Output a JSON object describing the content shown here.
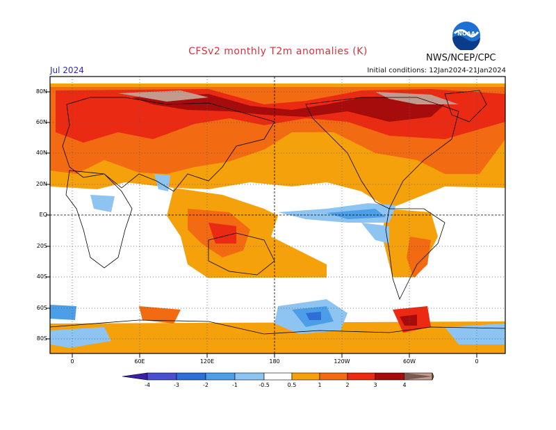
{
  "header": {
    "title": "CFSv2 monthly T2m anomalies (K)",
    "organization": "NWS/NCEP/CPC",
    "logo_text": "NOAA",
    "period": "Jul 2024",
    "initial_conditions": "Initial conditions: 12Jan2024-21Jan2024"
  },
  "map": {
    "lat_labels": [
      "80N",
      "60N",
      "40N",
      "20N",
      "EQ",
      "20S",
      "40S",
      "60S",
      "80S"
    ],
    "lon_labels": [
      "0",
      "60E",
      "120E",
      "180",
      "120W",
      "60W",
      "0"
    ],
    "gridlines": "dotted"
  },
  "colorbar": {
    "labels": [
      "-4",
      "-3",
      "-2",
      "-1",
      "-0.5",
      "0.5",
      "1",
      "2",
      "3",
      "4"
    ],
    "colors": [
      "#3c1fa8",
      "#4a4fd0",
      "#2e6fd6",
      "#4c9ee6",
      "#8ec4f2",
      "#ffffff",
      "#f5a10b",
      "#f26a12",
      "#ea2a12",
      "#a60c0c",
      "#c49a8c",
      "#7a5a50"
    ]
  },
  "colors": {
    "warm_light": "#f5a10b",
    "warm_mid": "#f26a12",
    "warm_high": "#ea2a12",
    "warm_extreme": "#a60c0c",
    "warm_max": "#c49a8c",
    "cool_light": "#8ec4f2",
    "cool_mid": "#4c9ee6",
    "cool_high": "#2e6fd6",
    "cool_extreme": "#3c1fa8"
  }
}
